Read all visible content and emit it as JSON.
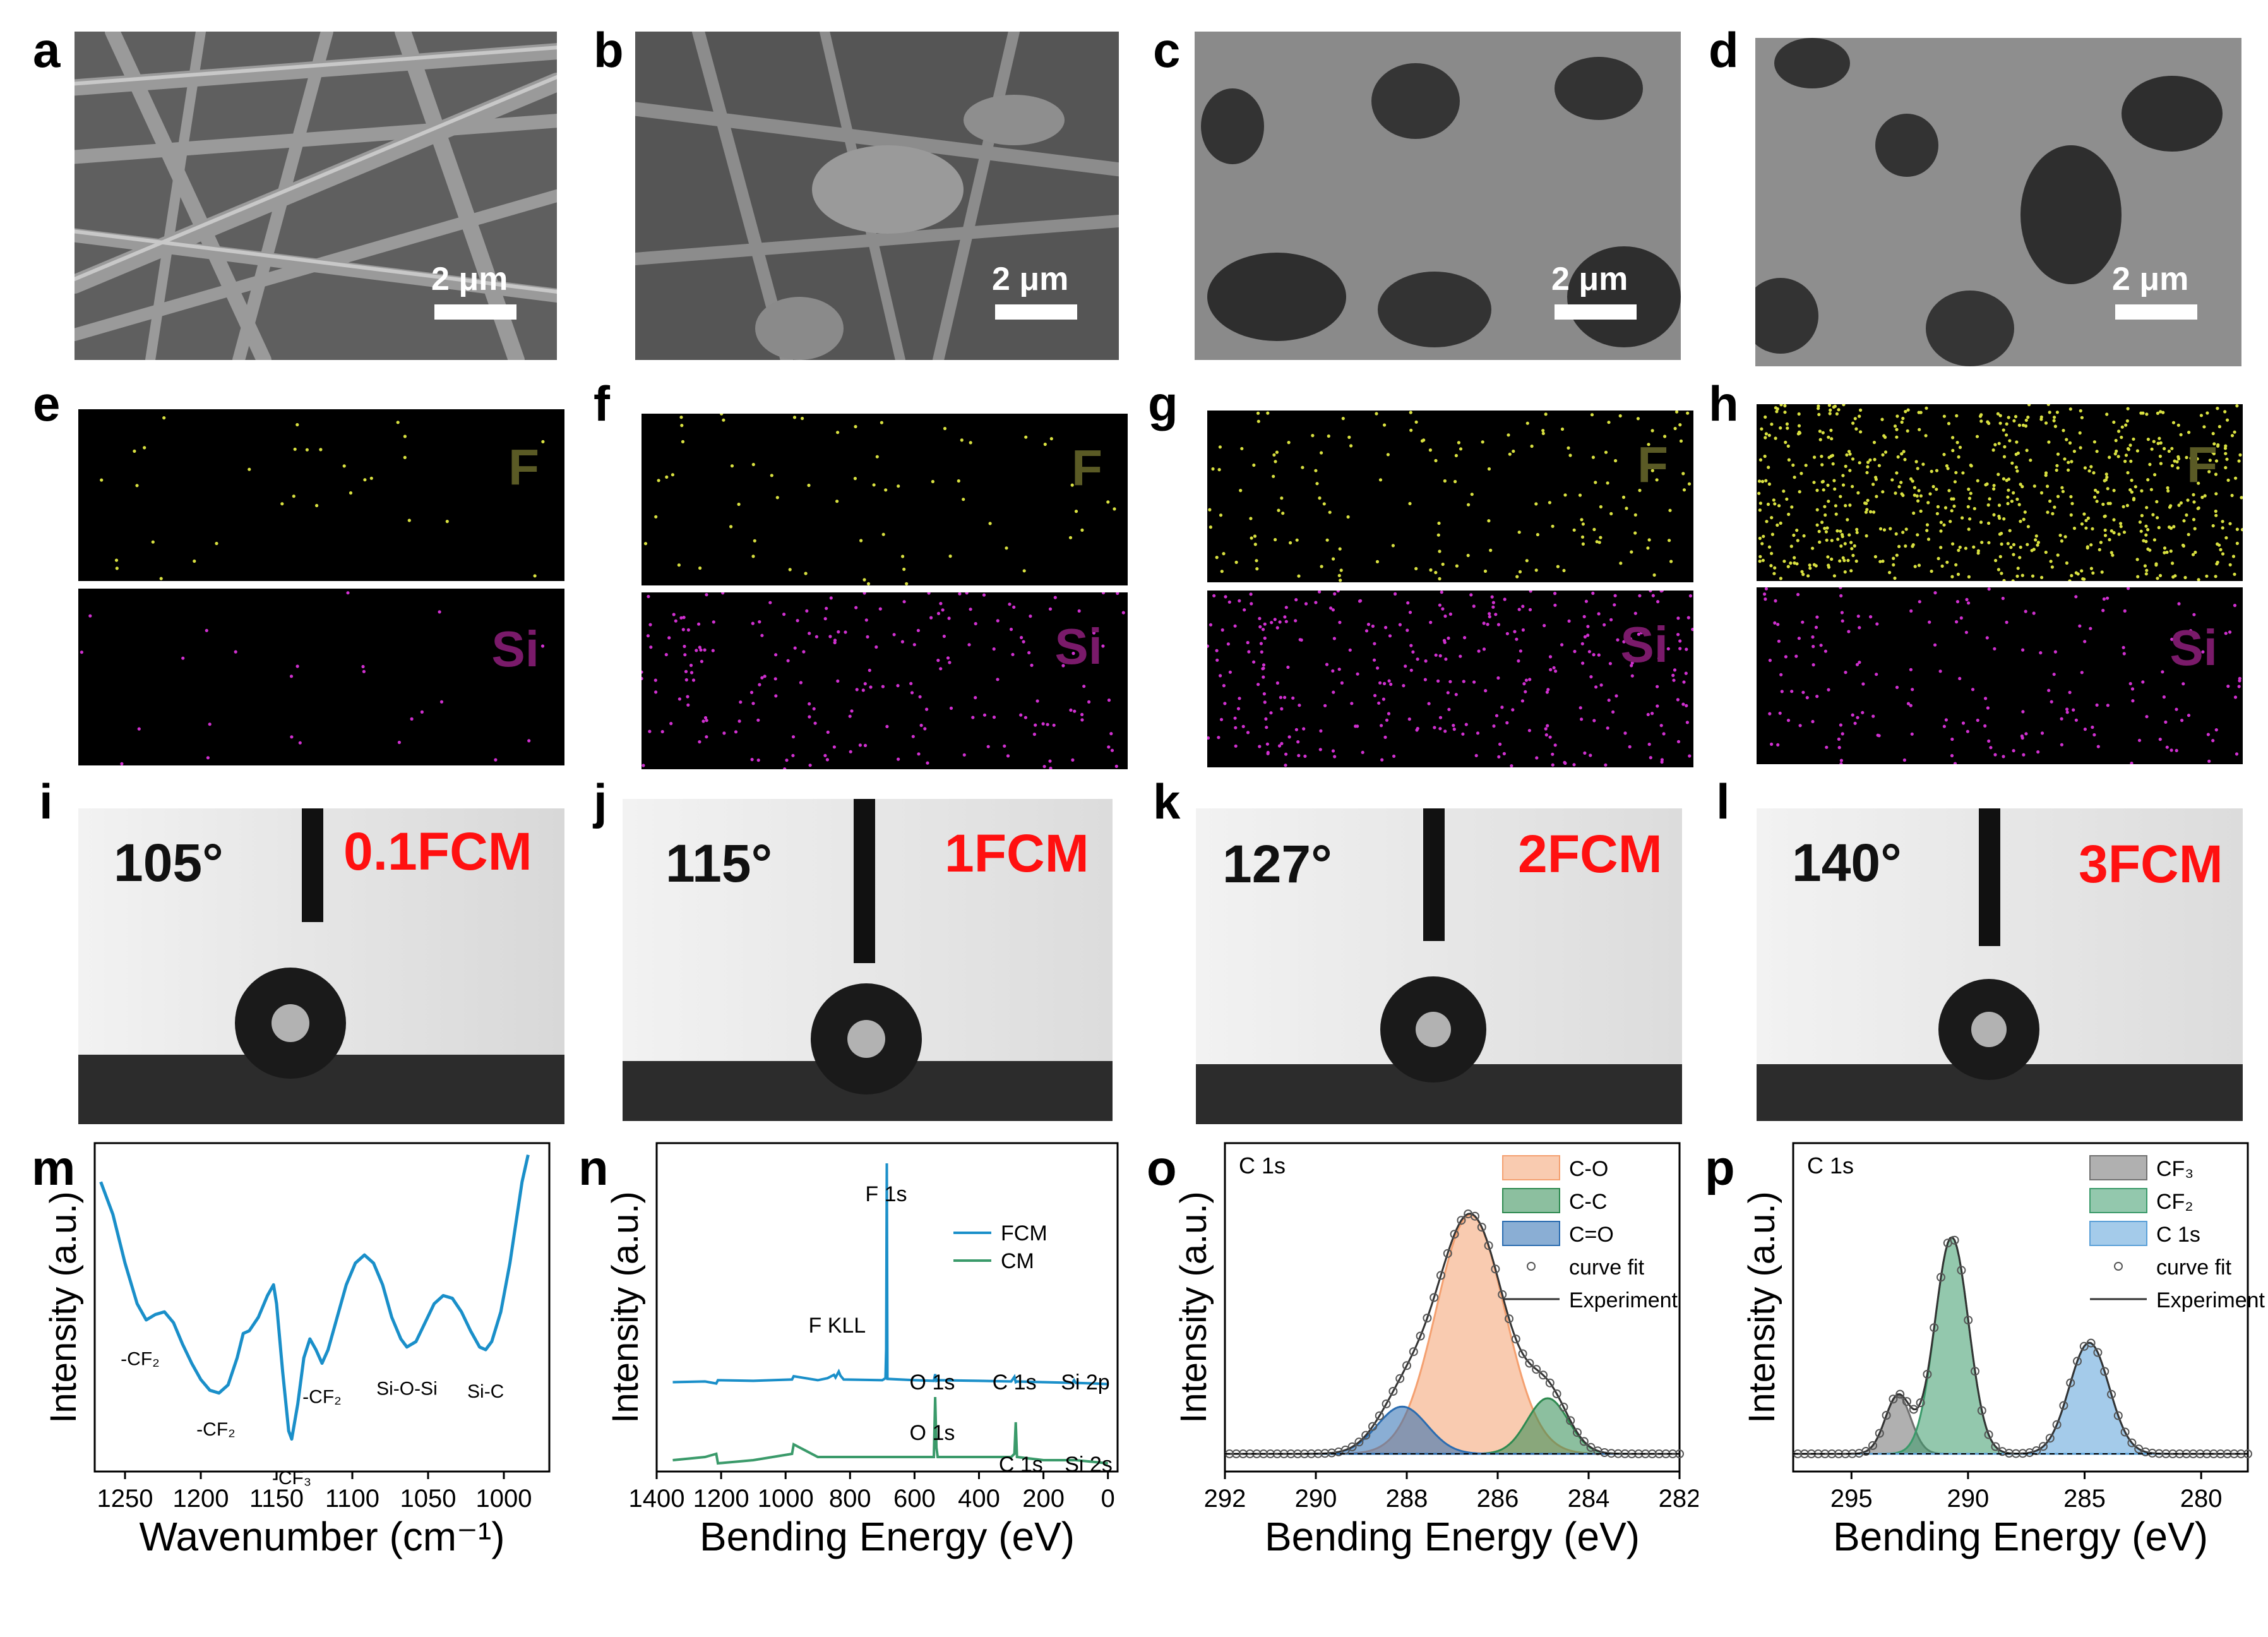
{
  "panels": {
    "a": {
      "label": "a",
      "scale": "2 μm"
    },
    "b": {
      "label": "b",
      "scale": "2 μm"
    },
    "c": {
      "label": "c",
      "scale": "2 μm"
    },
    "d": {
      "label": "d",
      "scale": "2 μm"
    },
    "e": {
      "label": "e",
      "top_element": "F",
      "bottom_element": "Si"
    },
    "f": {
      "label": "f",
      "top_element": "F",
      "bottom_element": "Si"
    },
    "g": {
      "label": "g",
      "top_element": "F",
      "bottom_element": "Si"
    },
    "h": {
      "label": "h",
      "top_element": "F",
      "bottom_element": "Si"
    },
    "i": {
      "label": "i",
      "angle": "105°",
      "sample": "0.1FCM"
    },
    "j": {
      "label": "j",
      "angle": "115°",
      "sample": "1FCM"
    },
    "k": {
      "label": "k",
      "angle": "127°",
      "sample": "2FCM"
    },
    "l": {
      "label": "l",
      "angle": "140°",
      "sample": "3FCM"
    },
    "m": {
      "label": "m"
    },
    "n": {
      "label": "n"
    },
    "o": {
      "label": "o"
    },
    "p": {
      "label": "p"
    }
  },
  "colors": {
    "f_label": "#5a5a25",
    "si_label": "#7a1a6a",
    "f_dot": "#d8e040",
    "si_dot": "#d030d0",
    "sample_text": "#ff1010",
    "ftir_line": "#1a8fc9",
    "fcm_line": "#1a8fc9",
    "cm_line": "#3a9a6a",
    "c_o_fill": "#f4a070",
    "c_c_fill": "#2e8a50",
    "c_eq_o_fill": "#2a6cb0",
    "cf3_fill": "#707070",
    "cf2_fill": "#3a9a6a",
    "c1s_fill": "#5aa0d8"
  },
  "chart_data": [
    {
      "panel": "m",
      "type": "line",
      "xlabel": "Wavenumber (cm⁻¹)",
      "ylabel": "Intensity (a.u.)",
      "xlim": [
        1270,
        970
      ],
      "xticks": [
        1250,
        1200,
        1150,
        1100,
        1050,
        1000
      ],
      "series": [
        {
          "x": [
            1266,
            1258,
            1250,
            1242,
            1236,
            1230,
            1224,
            1218,
            1212,
            1206,
            1200,
            1194,
            1188,
            1182,
            1176,
            1172,
            1168,
            1162,
            1156,
            1152,
            1150,
            1146,
            1142,
            1140,
            1136,
            1132,
            1128,
            1124,
            1120,
            1116,
            1110,
            1104,
            1098,
            1092,
            1086,
            1080,
            1074,
            1068,
            1064,
            1058,
            1052,
            1046,
            1040,
            1034,
            1028,
            1022,
            1016,
            1012,
            1008,
            1002,
            996,
            992,
            988,
            984
          ],
          "y": [
            100,
            88,
            70,
            55,
            49,
            51,
            52,
            48,
            40,
            33,
            27,
            23,
            22,
            25,
            35,
            44,
            45,
            50,
            58,
            62,
            55,
            30,
            8,
            5,
            18,
            35,
            42,
            38,
            33,
            38,
            50,
            62,
            70,
            73,
            70,
            62,
            50,
            42,
            39,
            41,
            48,
            55,
            58,
            57,
            52,
            45,
            39,
            38,
            41,
            52,
            70,
            85,
            100,
            110
          ]
        }
      ],
      "annotations": [
        "-CF₂",
        "-CF₂",
        "-CF₃",
        "-CF₂",
        "Si-O-Si",
        "Si-C"
      ]
    },
    {
      "panel": "n",
      "type": "line",
      "xlabel": "Bending Energy (eV)",
      "ylabel": "Intensity (a.u.)",
      "xlim": [
        1400,
        -30
      ],
      "xticks": [
        1400,
        1200,
        1000,
        800,
        600,
        400,
        200,
        0
      ],
      "series": [
        {
          "name": "FCM",
          "x": [
            1350,
            1250,
            1215,
            1210,
            1100,
            980,
            975,
            900,
            870,
            850,
            845,
            835,
            830,
            820,
            700,
            690,
            688,
            686,
            684,
            600,
            540,
            536,
            532,
            528,
            400,
            300,
            290,
            286,
            282,
            200,
            110,
            105,
            100,
            40,
            0
          ],
          "y": [
            30,
            31,
            28,
            33,
            32,
            34,
            39,
            33,
            36,
            41,
            37,
            46,
            40,
            34,
            33,
            36,
            80,
            360,
            35,
            33,
            32,
            42,
            32,
            33,
            32,
            31,
            38,
            30,
            31,
            30,
            29,
            33,
            29,
            28,
            27
          ]
        },
        {
          "name": "CM",
          "x": [
            1350,
            1250,
            1215,
            1210,
            1100,
            980,
            975,
            900,
            600,
            540,
            536,
            532,
            528,
            400,
            300,
            290,
            286,
            282,
            200,
            100,
            0
          ],
          "y": [
            0,
            1,
            2,
            -1,
            0,
            2,
            5,
            1,
            1,
            1,
            20,
            4,
            1,
            1,
            1,
            2,
            12,
            1,
            0,
            0,
            -1
          ]
        }
      ],
      "annotations": [
        "F 1s",
        "F KLL",
        "O 1s",
        "C 1s",
        "Si 2p",
        "Si 2s",
        "O 1s",
        "C 1s"
      ],
      "legend": [
        "FCM",
        "CM"
      ]
    },
    {
      "panel": "o",
      "type": "area",
      "title": "C 1s",
      "xlabel": "Bending Energy (eV)",
      "ylabel": "Intensity (a.u.)",
      "xlim": [
        292,
        282
      ],
      "xticks": [
        292,
        290,
        288,
        286,
        284,
        282
      ],
      "components": [
        {
          "name": "C-O",
          "center": 286.6,
          "height": 0.86,
          "width": 0.75
        },
        {
          "name": "C-C",
          "center": 284.9,
          "height": 0.2,
          "width": 0.45
        },
        {
          "name": "C=O",
          "center": 288.1,
          "height": 0.17,
          "width": 0.55
        }
      ],
      "legend": [
        "C-O",
        "C-C",
        "C=O",
        "curve fit",
        "Experiment"
      ]
    },
    {
      "panel": "p",
      "type": "area",
      "title": "C 1s",
      "xlabel": "Bending Energy (eV)",
      "ylabel": "Intensity (a.u.)",
      "xlim": [
        297.5,
        278
      ],
      "xticks": [
        295,
        290,
        285,
        280
      ],
      "components": [
        {
          "name": "CF₃",
          "center": 293.0,
          "height": 0.21,
          "width": 0.55
        },
        {
          "name": "CF₂",
          "center": 290.7,
          "height": 0.78,
          "width": 0.72
        },
        {
          "name": "C 1s",
          "center": 284.8,
          "height": 0.4,
          "width": 0.85
        }
      ],
      "legend": [
        "CF₃",
        "CF₂",
        "C 1s",
        "curve fit",
        "Experiment"
      ]
    }
  ]
}
